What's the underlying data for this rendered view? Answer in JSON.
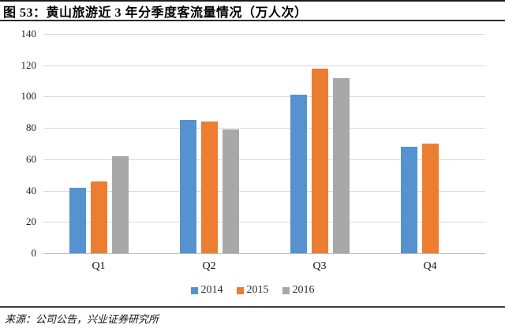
{
  "header": {
    "figure_label": "图 53：",
    "title": "黄山旅游近 3 年分季度客流量情况（万人次）"
  },
  "chart_data": {
    "type": "bar",
    "title": "黄山旅游近3年分季度客流量情况（万人次）",
    "categories": [
      "Q1",
      "Q2",
      "Q3",
      "Q4"
    ],
    "series": [
      {
        "name": "2014",
        "color": "#5592CF",
        "values": [
          42,
          85,
          101,
          68
        ]
      },
      {
        "name": "2015",
        "color": "#ED7D31",
        "values": [
          46,
          84,
          118,
          70
        ]
      },
      {
        "name": "2016",
        "color": "#A8A8A8",
        "values": [
          62,
          79,
          112,
          null
        ]
      }
    ],
    "ylim": [
      0,
      140
    ],
    "ytick_step": 20,
    "grid": "horizontal",
    "legend_position": "bottom",
    "xlabel": "",
    "ylabel": ""
  },
  "footer": {
    "source": "来源：公司公告，兴业证券研究所"
  }
}
